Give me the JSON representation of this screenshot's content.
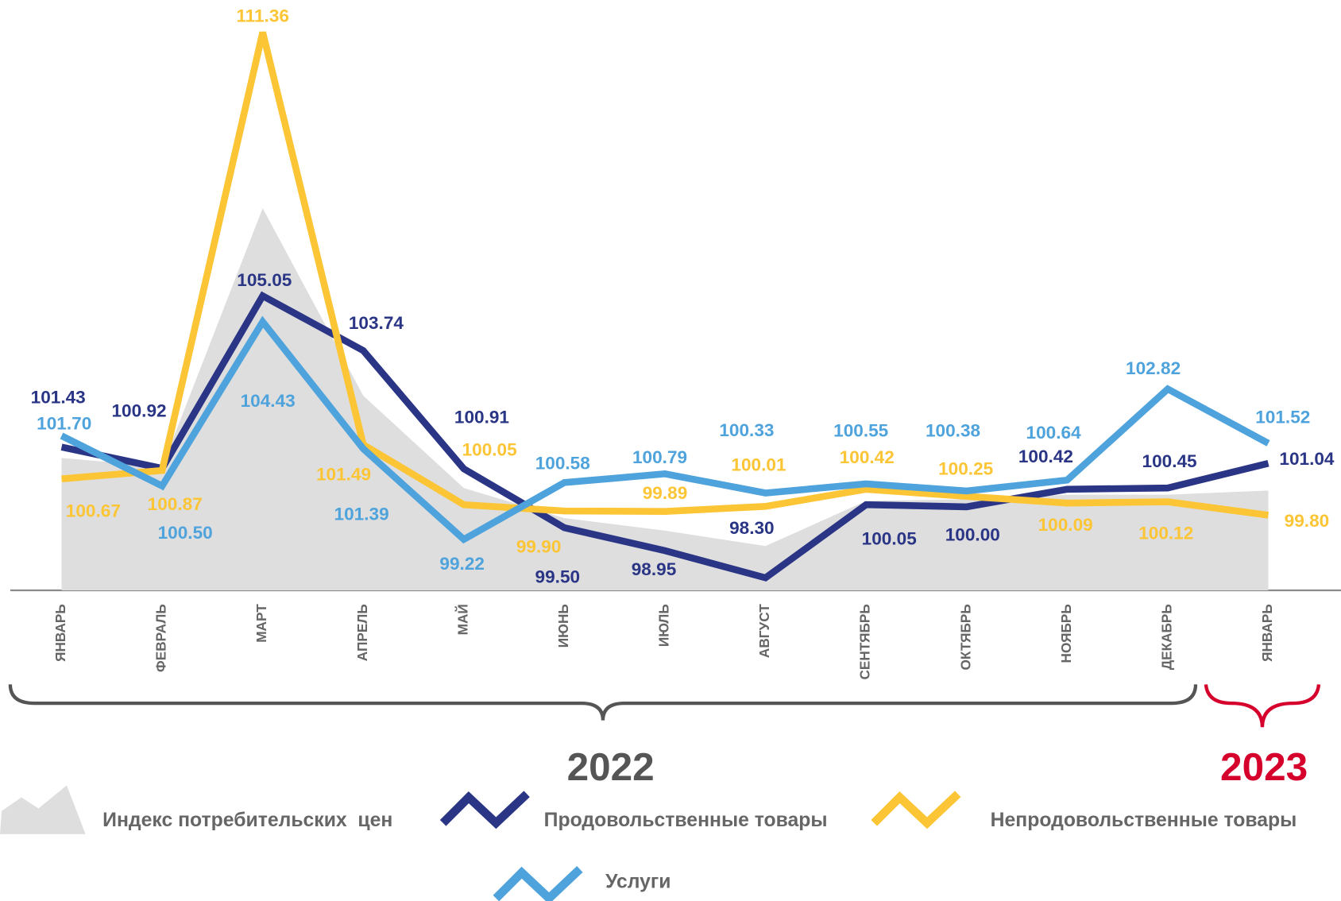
{
  "chart_data": {
    "type": "line",
    "categories": [
      "ЯНВАРЬ",
      "ФЕВРАЛЬ",
      "МАРТ",
      "АПРЕЛЬ",
      "МАЙ",
      "ИЮНЬ",
      "ИЮЛЬ",
      "АВГУСТ",
      "СЕНТЯБРЬ",
      "ОКТЯБРЬ",
      "НОЯБРЬ",
      "ДЕКАБРЬ",
      "ЯНВАРЬ"
    ],
    "series": [
      {
        "name": "Индекс потребительских  цен",
        "color": "#dedede",
        "style": "area",
        "values": [
          101.17,
          100.96,
          107.15,
          102.66,
          100.45,
          99.73,
          99.43,
          99.06,
          100.14,
          100.18,
          100.29,
          100.29,
          100.39
        ]
      },
      {
        "name": "Продовольственные товары",
        "color": "#2a3585",
        "values": [
          101.43,
          100.92,
          105.05,
          103.74,
          100.91,
          99.5,
          98.95,
          98.3,
          100.05,
          100,
          100.42,
          100.45,
          101.04
        ],
        "value_labels": [
          "101.43",
          "100.92",
          "105.05",
          "103.74",
          "100.91",
          "99.50",
          "98.95",
          "98.30",
          "100.05",
          "100.00",
          "100.42",
          "100.45",
          "101.04"
        ]
      },
      {
        "name": "Непродовольственные товары",
        "color": "#fcc535",
        "values": [
          100.67,
          100.87,
          111.36,
          101.49,
          100.05,
          99.9,
          99.89,
          100.01,
          100.42,
          100.25,
          100.09,
          100.12,
          99.8
        ],
        "value_labels": [
          "100.67",
          "100.87",
          "111.36",
          "101.49",
          "100.05",
          "99.90",
          "99.89",
          "100.01",
          "100.42",
          "100.25",
          "100.09",
          "100.12",
          "99.80"
        ]
      },
      {
        "name": "Услуги",
        "color": "#4fa3dc",
        "values": [
          101.7,
          100.5,
          104.43,
          101.39,
          99.22,
          100.58,
          100.79,
          100.33,
          100.55,
          100.38,
          100.64,
          102.82,
          101.52
        ],
        "value_labels": [
          "101.70",
          "100.50",
          "104.43",
          "101.39",
          "99.22",
          "100.58",
          "100.79",
          "100.33",
          "100.55",
          "100.38",
          "100.64",
          "102.82",
          "101.52"
        ]
      }
    ],
    "annotations": [
      "2022",
      "2023"
    ],
    "ylim": [
      98,
      112.13
    ],
    "grid": false
  }
}
